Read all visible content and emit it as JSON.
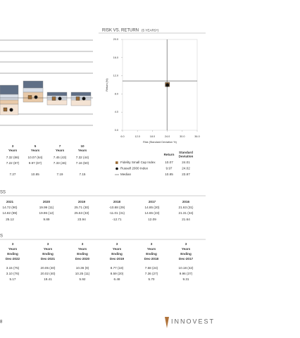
{
  "performance": {
    "periods": [
      {
        "n": "3",
        "unit": "Years"
      },
      {
        "n": "5",
        "unit": "Years"
      },
      {
        "n": "7",
        "unit": "Years"
      },
      {
        "n": "10",
        "unit": "Years"
      }
    ],
    "rows": [
      [
        "7.32 (86)",
        "10.07 (64)",
        "7.45 (43)",
        "7.32 (44)"
      ],
      [
        "7.22 (87)",
        "9.97 (67)",
        "7.33 (46)",
        "7.16 (50)"
      ],
      [
        "7.27",
        "10.85",
        "7.19",
        "7.15"
      ]
    ]
  },
  "chart_data": {
    "type": "scatter",
    "title": "RISK VS. RETURN",
    "subtitle": "(5 YEARS*)",
    "xlabel": "Risk (Standard Deviation %)",
    "ylabel": "Return (%)",
    "xlim": [
      6,
      36
    ],
    "ylim": [
      0,
      20
    ],
    "xticks": [
      {
        "value": 6,
        "label": "6.0"
      },
      {
        "value": 12,
        "label": "12.0"
      },
      {
        "value": 18,
        "label": "18.0"
      },
      {
        "value": 24,
        "label": "24.0"
      },
      {
        "value": 30,
        "label": "30.0"
      },
      {
        "value": 36,
        "label": "36.0"
      }
    ],
    "yticks": [
      {
        "value": 0,
        "label": "0.0"
      },
      {
        "value": 4,
        "label": "4.0"
      },
      {
        "value": 8,
        "label": "8.0"
      },
      {
        "value": 12,
        "label": "12.0"
      },
      {
        "value": 16,
        "label": "16.0"
      },
      {
        "value": 20,
        "label": "20.0"
      }
    ],
    "series": [
      {
        "name": "Fidelity Small Cap Index",
        "color": "#9a6a34",
        "marker": "square",
        "x": [
          24.01
        ],
        "values": [
          10.07
        ]
      },
      {
        "name": "Russell 2000 Index",
        "color": "#111111",
        "marker": "circle",
        "x": [
          24.02
        ],
        "values": [
          9.97
        ]
      }
    ],
    "median": {
      "name": "Median",
      "x": 23.87,
      "y": 10.85,
      "color": "#222222"
    },
    "table_headers": [
      "Return",
      "Standard Deviation"
    ]
  },
  "calendar": {
    "title": "SS",
    "years": [
      "2021",
      "2020",
      "2019",
      "2018",
      "2017",
      "2016"
    ],
    "rows": [
      [
        "14.72 (90)",
        "19.99 (11)",
        "25.71 (30)",
        "-10.88 (29)",
        "14.85 (20)",
        "21.63 (31)"
      ],
      [
        "14.82 (89)",
        "19.96 (12)",
        "25.53 (33)",
        "-11.01 (31)",
        "14.65 (23)",
        "21.31 (34)"
      ],
      [
        "25.12",
        "9.89",
        "23.94",
        "-12.71",
        "12.09",
        "21.64"
      ]
    ]
  },
  "rolling": {
    "title": "S",
    "columns": [
      {
        "n": "3",
        "unit": "Years",
        "ending": "Ending",
        "date": "Dec-2022"
      },
      {
        "n": "3",
        "unit": "Years",
        "ending": "Ending",
        "date": "Dec-2021"
      },
      {
        "n": "3",
        "unit": "Years",
        "ending": "Ending",
        "date": "Dec-2020"
      },
      {
        "n": "3",
        "unit": "Years",
        "ending": "Ending",
        "date": "Dec-2019"
      },
      {
        "n": "3",
        "unit": "Years",
        "ending": "Ending",
        "date": "Dec-2018"
      },
      {
        "n": "3",
        "unit": "Years",
        "ending": "Ending",
        "date": "Dec-2017"
      }
    ],
    "rows": [
      [
        "3.15 (75)",
        "20.05 (40)",
        "10.36 (9)",
        "8.77 (18)",
        "7.58 (24)",
        "10.18 (42)"
      ],
      [
        "3.10 (76)",
        "20.02 (40)",
        "10.25 (11)",
        "8.59 (20)",
        "7.36 (27)",
        "9.96 (37)"
      ],
      [
        "5.17",
        "19.41",
        "5.92",
        "6.48",
        "5.70",
        "9.31"
      ]
    ]
  },
  "footer": {
    "page": "8",
    "logo": "INNOVEST"
  }
}
